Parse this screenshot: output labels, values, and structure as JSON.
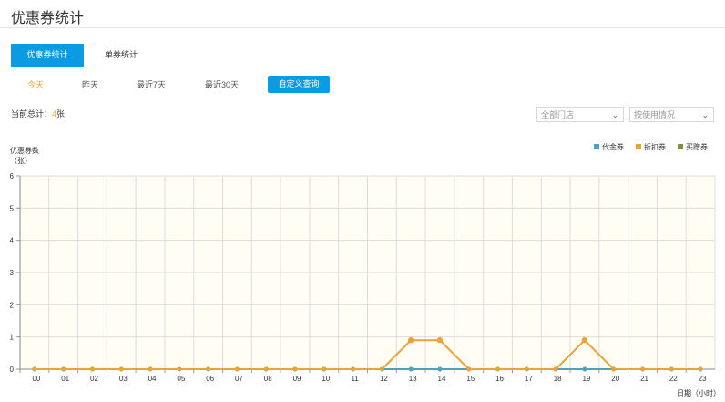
{
  "page": {
    "title": "优惠券统计"
  },
  "tabs": [
    {
      "label": "优惠券统计",
      "active": true
    },
    {
      "label": "单券统计",
      "active": false
    }
  ],
  "ranges": [
    {
      "label": "今天",
      "active": true
    },
    {
      "label": "昨天",
      "active": false
    },
    {
      "label": "最近7天",
      "active": false
    },
    {
      "label": "最近30天",
      "active": false
    }
  ],
  "custom_query_label": "自定义查询",
  "summary": {
    "prefix": "当前总计：",
    "count": "4",
    "unit": "张"
  },
  "filters": {
    "store": {
      "value": "全部门店"
    },
    "usage": {
      "value": "按使用情况"
    }
  },
  "colors": {
    "accent": "#0a9be3",
    "highlight": "#f0a33a",
    "plot_bg": "#fffdf4"
  },
  "chart_data": {
    "type": "line",
    "ylabel": "优惠券数\n（张）",
    "xlabel": "日期（小时）",
    "ylim": [
      0,
      6
    ],
    "yticks": [
      "0",
      "1",
      "2",
      "3",
      "4",
      "5",
      "6"
    ],
    "categories": [
      "00",
      "01",
      "02",
      "03",
      "04",
      "05",
      "06",
      "07",
      "08",
      "09",
      "10",
      "11",
      "12",
      "13",
      "14",
      "15",
      "16",
      "17",
      "18",
      "19",
      "20",
      "21",
      "22",
      "23"
    ],
    "legend_position": "top-right",
    "grid": true,
    "series": [
      {
        "name": "代金券",
        "color": "#4aa3c4",
        "values": [
          0,
          0,
          0,
          0,
          0,
          0,
          0,
          0,
          0,
          0,
          0,
          0,
          0,
          0,
          0,
          0,
          0,
          0,
          0,
          0,
          0,
          0,
          0,
          0
        ]
      },
      {
        "name": "折扣券",
        "color": "#e8a33a",
        "values": [
          0,
          0,
          0,
          0,
          0,
          0,
          0,
          0,
          0,
          0,
          0,
          0,
          0,
          0.9,
          0.9,
          0,
          0,
          0,
          0,
          0.9,
          0,
          0,
          0,
          0
        ]
      },
      {
        "name": "买赠券",
        "color": "#7d9142",
        "values": [
          0,
          0,
          0,
          0,
          0,
          0,
          0,
          0,
          0,
          0,
          0,
          0,
          0,
          0,
          0,
          0,
          0,
          0,
          0,
          0,
          0,
          0,
          0,
          0
        ]
      }
    ]
  }
}
